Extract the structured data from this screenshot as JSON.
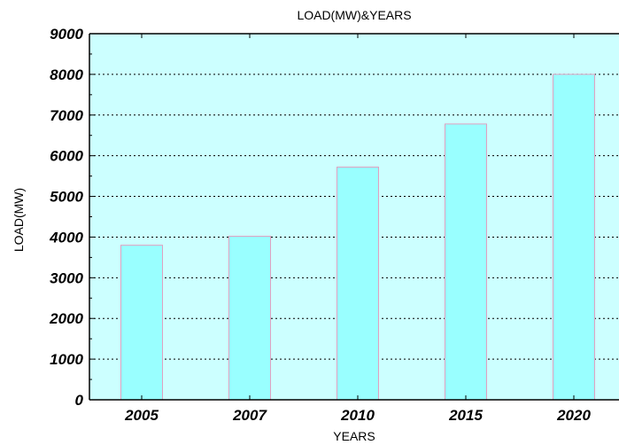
{
  "chart_data": {
    "type": "bar",
    "title": "LOAD(MW)&YEARS",
    "xlabel": "YEARS",
    "ylabel": "LOAD(MW)",
    "categories": [
      "2005",
      "2007",
      "2010",
      "2015",
      "2020"
    ],
    "values": [
      3800,
      4020,
      5720,
      6780,
      8000
    ],
    "ylim": [
      0,
      9000
    ],
    "yticks": [
      "0",
      "1000",
      "2000",
      "3000",
      "4000",
      "5000",
      "6000",
      "7000",
      "8000",
      "9000"
    ],
    "grid": true,
    "colors": {
      "plot_background": "#ccffff",
      "bar_fill": "#99ffff",
      "bar_edge": "#e0a0c0"
    }
  }
}
